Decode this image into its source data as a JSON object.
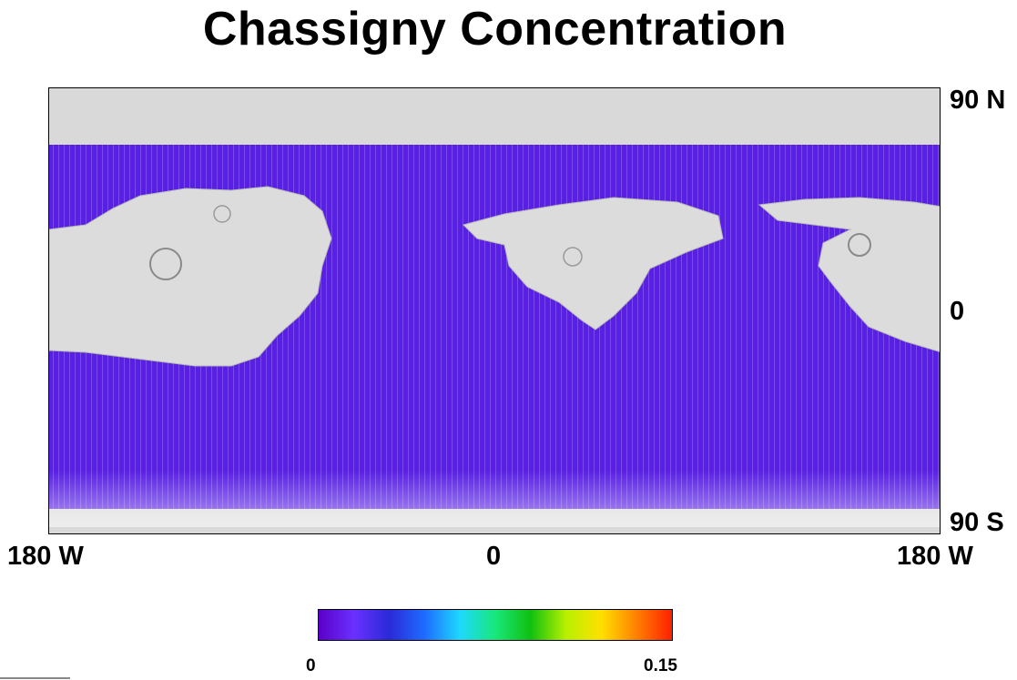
{
  "title": "Chassigny Concentration",
  "map": {
    "latitude_labels": {
      "north": "90 N",
      "equator": "0",
      "south": "90 S"
    },
    "longitude_labels": {
      "left": "180 W",
      "center": "0",
      "right": "180 W"
    },
    "terrain_color": "#d9d9d9",
    "data_color": "#5a1ee6"
  },
  "colorbar": {
    "min_label": "0",
    "max_label": "0.15",
    "min": 0,
    "max": 0.15,
    "colors": [
      "#5a00c8",
      "#6a30ff",
      "#2a2ad8",
      "#1e6cff",
      "#1ed8ff",
      "#18e87a",
      "#10c010",
      "#b8f000",
      "#ffe000",
      "#ff8000",
      "#ff2000"
    ]
  }
}
